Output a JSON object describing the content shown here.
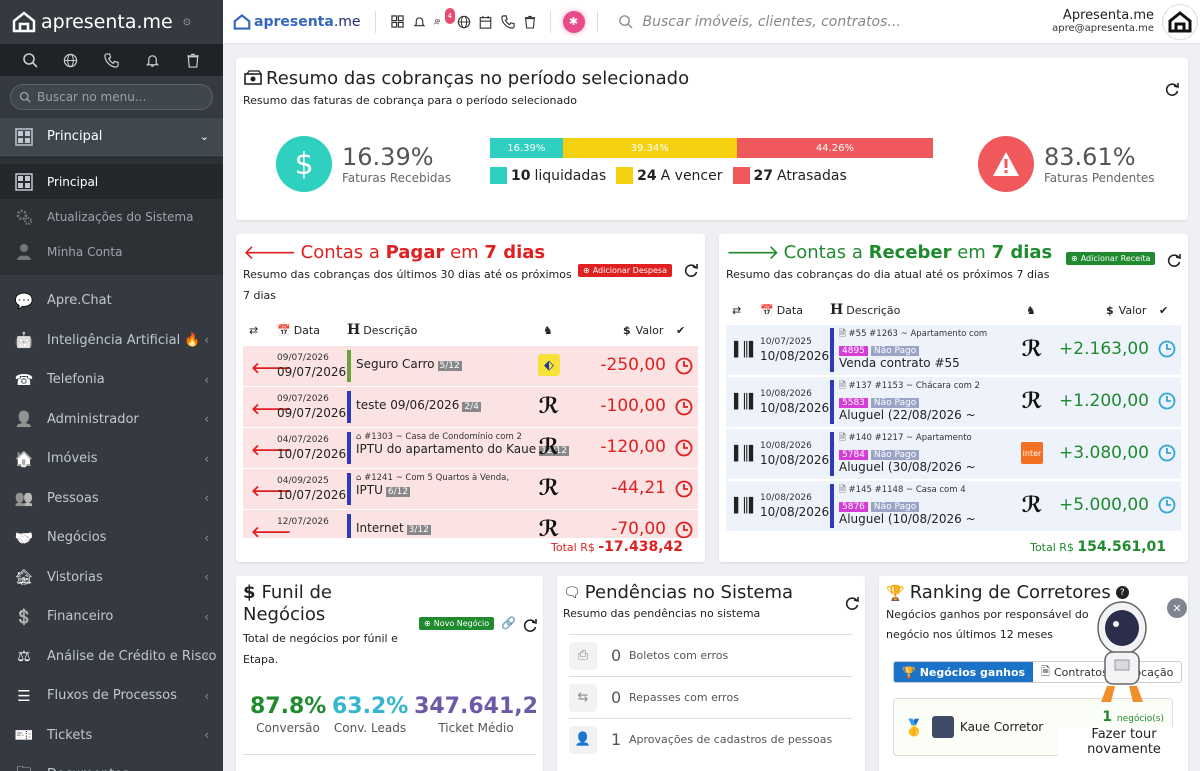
{
  "sidebar": {
    "brand": "apresenta.me",
    "search_placeholder": "Buscar no menu...",
    "open_group": "Principal",
    "sub_items": [
      {
        "label": "Principal"
      },
      {
        "label": "Atualizações do Sistema"
      },
      {
        "label": "Minha Conta"
      }
    ],
    "items": [
      {
        "label": "Apre.Chat"
      },
      {
        "label": "Inteligência Artificial 🔥"
      },
      {
        "label": "Telefonia"
      },
      {
        "label": "Administrador"
      },
      {
        "label": "Imóveis"
      },
      {
        "label": "Pessoas"
      },
      {
        "label": "Negócios"
      },
      {
        "label": "Vistorias"
      },
      {
        "label": "Financeiro"
      },
      {
        "label": "Análise de Crédito e Risco"
      },
      {
        "label": "Fluxos de Processos"
      },
      {
        "label": "Tickets"
      },
      {
        "label": "Documentos"
      }
    ]
  },
  "topbar": {
    "logo_a": "apresenta",
    "logo_b": ".me",
    "notif_count": "4",
    "search_placeholder": "Buscar imóveis, clientes, contratos...",
    "user_name": "Apresenta.me",
    "user_email": "apre@apresenta.me"
  },
  "summary": {
    "title": "Resumo das cobranças no período selecionado",
    "subtitle": "Resumo das faturas de cobrança para o período selecionado",
    "received_pct": "16.39%",
    "received_label": "Faturas Recebidas",
    "pending_pct": "83.61%",
    "pending_label": "Faturas Pendentes",
    "bars": [
      {
        "label": "16.39%",
        "value": 16.39,
        "color": "#2fd0c0"
      },
      {
        "label": "39.34%",
        "value": 39.34,
        "color": "#f4d10f"
      },
      {
        "label": "44.26%",
        "value": 44.26,
        "color": "#f0585b"
      }
    ],
    "legend": [
      {
        "count": "10",
        "label": "liquidadas",
        "color": "#2fd0c0"
      },
      {
        "count": "24",
        "label": "A vencer",
        "color": "#f4d10f"
      },
      {
        "count": "27",
        "label": "Atrasadas",
        "color": "#f0585b"
      }
    ]
  },
  "pagar": {
    "t1": "Contas a ",
    "t2": "Pagar",
    "t3": " em ",
    "t4": "7 dias",
    "subtitle": "Resumo das cobranças dos últimos 30 dias até os próximos 7 dias",
    "add_label": "Adicionar Despesa",
    "th_date": "Data",
    "th_desc": "Descrição",
    "th_val": "Valor",
    "rows": [
      {
        "d1": "09/07/2026",
        "d2": "09/07/2026",
        "l1": "",
        "l2": "Seguro Carro",
        "tag": "5/12",
        "val": "-250,00",
        "bar": "#6aa33a"
      },
      {
        "d1": "09/07/2026",
        "d2": "09/07/2026",
        "l1": "",
        "l2": "teste 09/06/2026",
        "tag": "2/4",
        "val": "-100,00",
        "bar": "#2f3ab8"
      },
      {
        "d1": "04/07/2026",
        "d2": "10/07/2026",
        "l1": "#1303 ~ Casa de Condomínio com 2",
        "l2": "IPTU do apartamento do Kaue",
        "tag": "12/12",
        "val": "-120,00",
        "bar": "#2f3ab8"
      },
      {
        "d1": "04/09/2025",
        "d2": "10/07/2026",
        "l1": "#1241 ~ Com 5 Quartos à Venda,",
        "l2": "IPTU",
        "tag": "6/12",
        "val": "-44,21",
        "bar": "#2f3ab8"
      },
      {
        "d1": "12/07/2026",
        "d2": "",
        "l1": "",
        "l2": "Internet",
        "tag": "3/12",
        "val": "-70,00",
        "bar": "#2f3ab8"
      }
    ],
    "total_label": "Total R$",
    "total": "-17.438,42"
  },
  "receber": {
    "t1": "Contas a ",
    "t2": "Receber",
    "t3": " em ",
    "t4": "7 dias",
    "subtitle": "Resumo das cobranças do dia atual até os próximos 7 dias",
    "add_label": "Adicionar Receita",
    "th_date": "Data",
    "th_desc": "Descrição",
    "th_val": "Valor",
    "rows": [
      {
        "d1": "10/07/2025",
        "d2": "10/08/2026",
        "l1": "#55  #1263 ~ Apartamento com",
        "id": "4895",
        "np": "Não Pago",
        "l2": "Venda contrato #55",
        "val": "+2.163,00"
      },
      {
        "d1": "10/08/2026",
        "d2": "10/08/2026",
        "l1": "#137  #1153 ~ Chácara com 2",
        "id": "5583",
        "np": "Não Pago",
        "l2": "Aluguel (22/08/2026 ~",
        "val": "+1.200,00"
      },
      {
        "d1": "10/08/2026",
        "d2": "10/08/2026",
        "l1": "#140  #1217 ~ Apartamento",
        "id": "5784",
        "np": "Não Pago",
        "l2": "Aluguel (30/08/2026 ~",
        "val": "+3.080,00"
      },
      {
        "d1": "10/08/2026",
        "d2": "10/08/2026",
        "l1": "#145  #1148 ~ Casa com 4",
        "id": "5876",
        "np": "Não Pago",
        "l2": "Aluguel (10/08/2026 ~",
        "val": "+5.000,00"
      }
    ],
    "total_label": "Total R$",
    "total": "154.561,01"
  },
  "funil": {
    "title": "Funil de Negócios",
    "subtitle": "Total de negócios por fúnil e Etapa.",
    "add_label": "Novo Negócio",
    "metrics": [
      {
        "value": "87.8%",
        "label": "Conversão",
        "color": "#1f8a2e"
      },
      {
        "value": "63.2%",
        "label": "Conv. Leads",
        "color": "#33b6cf"
      },
      {
        "value": "347.641,2",
        "label": "Ticket Médio",
        "color": "#6c5aa8"
      }
    ]
  },
  "pend": {
    "title": "Pendências no Sistema",
    "subtitle": "Resumo das pendências no sistema",
    "rows": [
      {
        "n": "0",
        "label": "Boletos com erros"
      },
      {
        "n": "0",
        "label": "Repasses com erros"
      },
      {
        "n": "1",
        "label": "Aprovações de cadastros de pessoas"
      }
    ]
  },
  "rank": {
    "title": "Ranking de Corretores",
    "subtitle": "Negócios ganhos por responsável do negócio nos últimos 12 meses",
    "tab_on": "Negócios ganhos",
    "tab_off": "Contratos de Locação",
    "person": "Kaue Corretor",
    "count": "1",
    "count_suffix": "negócio(s)"
  },
  "tour": {
    "label": "Fazer tour novamente"
  }
}
